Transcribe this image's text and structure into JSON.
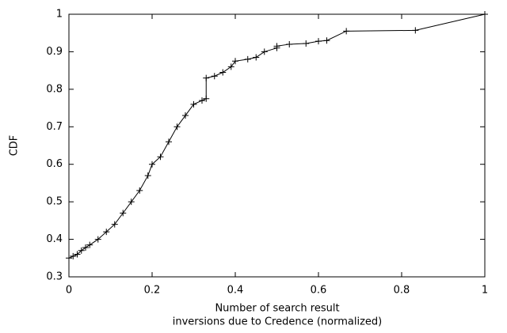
{
  "chart_data": {
    "type": "line",
    "y_label": "CDF",
    "x_label": [
      "Number of search result",
      "inversions due to Credence (normalized)"
    ],
    "x": [
      0,
      0.01,
      0.02,
      0.03,
      0.04,
      0.05,
      0.07,
      0.09,
      0.11,
      0.13,
      0.15,
      0.17,
      0.19,
      0.2,
      0.22,
      0.24,
      0.26,
      0.28,
      0.3,
      0.32,
      0.33,
      0.33,
      0.35,
      0.37,
      0.39,
      0.4,
      0.43,
      0.45,
      0.47,
      0.5,
      0.5,
      0.53,
      0.57,
      0.6,
      0.62,
      0.667,
      0.833,
      1
    ],
    "values": [
      0.35,
      0.355,
      0.36,
      0.37,
      0.378,
      0.385,
      0.4,
      0.42,
      0.44,
      0.47,
      0.5,
      0.53,
      0.57,
      0.6,
      0.62,
      0.66,
      0.7,
      0.73,
      0.76,
      0.77,
      0.775,
      0.83,
      0.835,
      0.845,
      0.86,
      0.875,
      0.88,
      0.885,
      0.9,
      0.91,
      0.915,
      0.92,
      0.922,
      0.928,
      0.93,
      0.955,
      0.957,
      1
    ],
    "color": "#000000",
    "xlim": [
      0,
      1
    ],
    "xticks": [
      0,
      0.2,
      0.4,
      0.6,
      0.8,
      1
    ],
    "ylim": [
      0.3,
      1
    ],
    "yticks": [
      0.3,
      0.4,
      0.5,
      0.6,
      0.7,
      0.8,
      0.9,
      1
    ]
  }
}
